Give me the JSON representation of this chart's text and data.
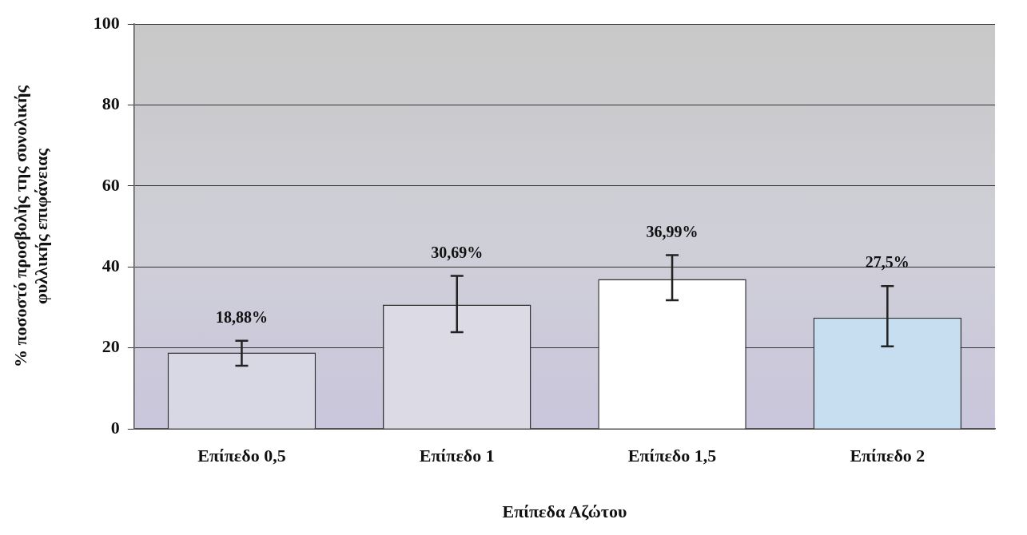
{
  "chart_data": {
    "type": "bar",
    "xlabel": "Επίπεδα Αζώτου",
    "ylabel": "% ποσοστό προσβολής της συνολικής φυλλικής επιφάνειας",
    "categories": [
      "Επίπεδο 0,5",
      "Επίπεδο 1",
      "Επίπεδο 1,5",
      "Επίπεδο 2"
    ],
    "values": [
      18.88,
      30.69,
      36.99,
      27.5
    ],
    "colors": [
      "#d8d8e4",
      "#dcdae4",
      "#ffffff",
      "#c6def0"
    ],
    "errors": [
      [
        15.6,
        21.8
      ],
      [
        23.9,
        37.8
      ],
      [
        31.8,
        42.9
      ],
      [
        20.4,
        35.3
      ]
    ],
    "value_labels": [
      "18,88%",
      "30,69%",
      "36,99%",
      "27,5%"
    ],
    "ylim": [
      0,
      100
    ],
    "yticks": [
      0,
      20,
      40,
      60,
      80,
      100
    ],
    "grid": "y",
    "legend": false
  }
}
